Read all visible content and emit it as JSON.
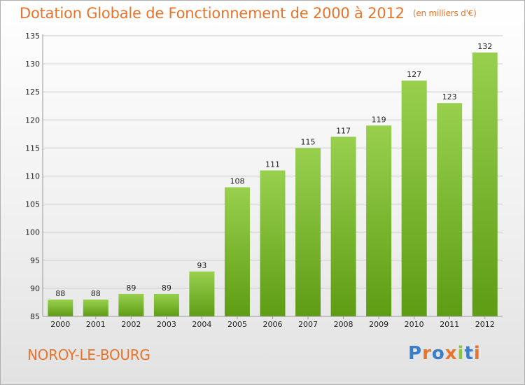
{
  "header": {
    "title": "Dotation Globale de Fonctionnement de 2000 à 2012",
    "unit": "(en milliers d'€)"
  },
  "footer": {
    "commune": "NOROY-LE-BOURG",
    "logo": "Proxiti",
    "logo_colors": [
      "#3a7dc9",
      "#e8732a",
      "#3a7dc9",
      "#e8732a",
      "#8cc63f",
      "#3a7dc9",
      "#e8732a"
    ]
  },
  "colors": {
    "accent": "#e8732a",
    "bar_top": "#98d04e",
    "bar_bottom": "#5e9c14",
    "grid": "#c8c8c8",
    "axis_text": "#222222"
  },
  "chart_data": {
    "type": "bar",
    "categories": [
      "2000",
      "2001",
      "2002",
      "2003",
      "2004",
      "2005",
      "2006",
      "2007",
      "2008",
      "2009",
      "2010",
      "2011",
      "2012"
    ],
    "values": [
      88,
      88,
      89,
      89,
      93,
      108,
      111,
      115,
      117,
      119,
      127,
      123,
      132
    ],
    "data_labels": [
      "88",
      "88",
      "89",
      "89",
      "93",
      "108",
      "111",
      "115",
      "117",
      "119",
      "127",
      "123",
      "132"
    ],
    "ylim": [
      85,
      135
    ],
    "yticks": [
      85,
      90,
      95,
      100,
      105,
      110,
      115,
      120,
      125,
      130,
      135
    ],
    "grid": true,
    "xlabel": "",
    "ylabel": ""
  }
}
